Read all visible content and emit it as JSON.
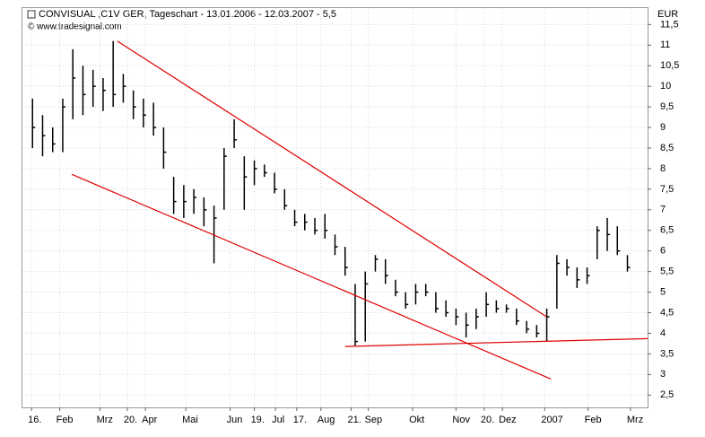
{
  "chart_data": {
    "type": "ohlc",
    "title": "CONVISUAL ,C1V GER, Tageschart - 13.01.2006 - 12.03.2007 - 5,5",
    "subtitle": "© www.tradesignal.com",
    "y_label": "EUR",
    "color": "#000000",
    "grid": true,
    "x": [
      0,
      1,
      2,
      3,
      4,
      5,
      6,
      7,
      8,
      9,
      10,
      11,
      12,
      13,
      14,
      15,
      16,
      17,
      18,
      19,
      20,
      21,
      22,
      23,
      24,
      25,
      26,
      27,
      28,
      29,
      30,
      31,
      32,
      33,
      34,
      35,
      36,
      37,
      38,
      39,
      40,
      41,
      42,
      43,
      44,
      45,
      46,
      47,
      48,
      49,
      50,
      51,
      52,
      53,
      54,
      55,
      56,
      57,
      58,
      59
    ],
    "high": [
      9.7,
      9.3,
      9.0,
      9.7,
      10.9,
      10.5,
      10.4,
      10.2,
      11.1,
      10.3,
      9.9,
      9.7,
      9.6,
      9.0,
      7.8,
      7.6,
      7.5,
      7.3,
      7.1,
      8.5,
      9.2,
      8.3,
      8.2,
      8.1,
      7.9,
      7.5,
      7.0,
      6.9,
      6.8,
      6.9,
      6.4,
      6.1,
      5.2,
      5.5,
      5.9,
      5.8,
      5.3,
      5.0,
      5.2,
      5.2,
      5.0,
      4.8,
      4.6,
      4.5,
      4.6,
      5.0,
      4.8,
      4.7,
      4.6,
      4.3,
      4.2,
      4.6,
      5.9,
      5.8,
      5.6,
      5.6,
      6.6,
      6.8,
      6.6,
      5.9
    ],
    "low": [
      8.5,
      8.3,
      8.4,
      8.4,
      9.2,
      9.3,
      9.5,
      9.4,
      9.5,
      9.6,
      9.2,
      9.0,
      8.8,
      8.0,
      6.9,
      6.8,
      6.9,
      6.6,
      5.7,
      7.0,
      8.5,
      7.0,
      7.6,
      7.8,
      7.4,
      7.0,
      6.6,
      6.5,
      6.4,
      6.3,
      5.9,
      5.4,
      3.7,
      3.8,
      5.5,
      5.2,
      4.9,
      4.6,
      4.7,
      4.9,
      4.5,
      4.4,
      4.2,
      3.9,
      4.1,
      4.4,
      4.5,
      4.5,
      4.2,
      4.0,
      3.9,
      3.8,
      4.6,
      5.4,
      5.1,
      5.2,
      5.8,
      6.0,
      5.9,
      5.5
    ],
    "close": [
      9.0,
      8.8,
      8.6,
      9.5,
      10.2,
      9.8,
      10.0,
      9.9,
      9.8,
      10.0,
      9.5,
      9.3,
      9.0,
      8.4,
      7.2,
      7.2,
      7.3,
      7.0,
      6.8,
      8.3,
      8.7,
      7.8,
      8.0,
      7.9,
      7.5,
      7.1,
      6.7,
      6.7,
      6.5,
      6.5,
      6.1,
      5.6,
      3.8,
      5.2,
      5.8,
      5.4,
      5.0,
      4.7,
      5.0,
      5.0,
      4.6,
      4.5,
      4.4,
      4.2,
      4.4,
      4.7,
      4.6,
      4.6,
      4.3,
      4.1,
      4.0,
      4.4,
      5.7,
      5.6,
      5.3,
      5.4,
      6.5,
      6.4,
      6.0,
      5.6
    ],
    "trendline_color": "#e00000",
    "trendlines": [
      {
        "x": [
          8.4,
          51.0
        ],
        "y": [
          11.1,
          4.4
        ]
      },
      {
        "x": [
          3.9,
          51.4
        ],
        "y": [
          7.86,
          2.89
        ]
      },
      {
        "x": [
          31.0,
          61.0
        ],
        "y": [
          3.68,
          3.87
        ]
      }
    ],
    "xlim": [
      -1,
      61
    ],
    "ylim": [
      2.2,
      11.9
    ],
    "xticks": [
      {
        "value": -0.1,
        "label": "16."
      },
      {
        "value": 2.7,
        "label": "Feb"
      },
      {
        "value": 6.7,
        "label": "Mrz"
      },
      {
        "value": 9.4,
        "label": "20."
      },
      {
        "value": 11.2,
        "label": "Apr"
      },
      {
        "value": 15.2,
        "label": "Mai"
      },
      {
        "value": 19.6,
        "label": "Jun"
      },
      {
        "value": 22.0,
        "label": "19."
      },
      {
        "value": 24.1,
        "label": "Jul"
      },
      {
        "value": 26.2,
        "label": "17."
      },
      {
        "value": 28.6,
        "label": "Aug"
      },
      {
        "value": 31.6,
        "label": "21."
      },
      {
        "value": 33.3,
        "label": "Sep"
      },
      {
        "value": 37.7,
        "label": "Okt"
      },
      {
        "value": 42.0,
        "label": "Nov"
      },
      {
        "value": 44.8,
        "label": "20."
      },
      {
        "value": 46.6,
        "label": "Dez"
      },
      {
        "value": 50.8,
        "label": "2007"
      },
      {
        "value": 55.1,
        "label": "Feb"
      },
      {
        "value": 59.3,
        "label": "Mrz"
      }
    ],
    "yticks": [
      {
        "value": 2.5,
        "label": "2,5"
      },
      3,
      {
        "value": 3.5,
        "label": "3,5"
      },
      4,
      {
        "value": 4.5,
        "label": "4,5"
      },
      5,
      {
        "value": 5.5,
        "label": "5,5"
      },
      6,
      {
        "value": 6.5,
        "label": "6,5"
      },
      7,
      {
        "value": 7.5,
        "label": "7,5"
      },
      8,
      {
        "value": 8.5,
        "label": "8,5"
      },
      9,
      {
        "value": 9.5,
        "label": "9,5"
      },
      10,
      {
        "value": 10.5,
        "label": "10,5"
      },
      11,
      {
        "value": 11.5,
        "label": "11,5"
      }
    ]
  }
}
